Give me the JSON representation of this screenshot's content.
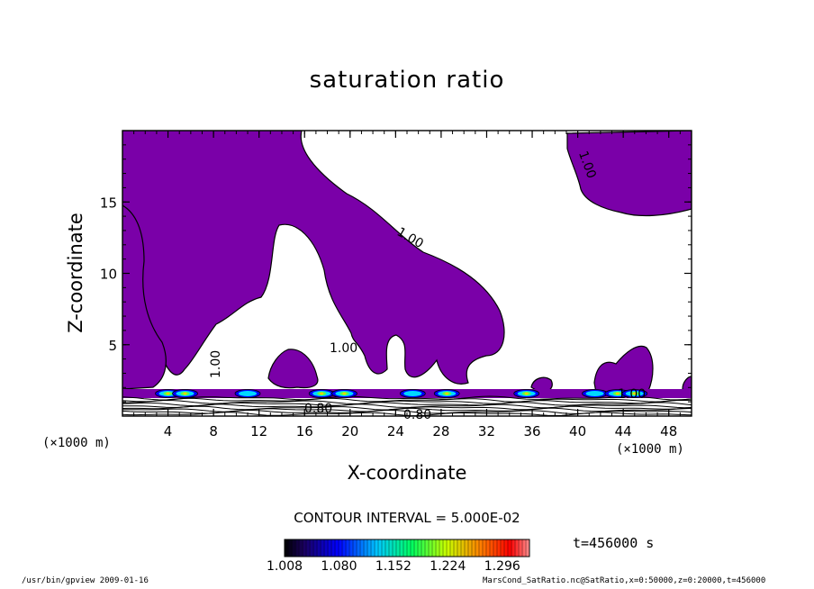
{
  "chart_data": {
    "type": "heatmap",
    "title": "saturation ratio",
    "xlabel": "X-coordinate",
    "ylabel": "Z-coordinate",
    "x_unit": "(×1000 m)",
    "z_unit": "(×1000 m)",
    "xlim": [
      0,
      50
    ],
    "ylim": [
      0,
      20
    ],
    "x_ticks": [
      4,
      8,
      12,
      16,
      20,
      24,
      28,
      32,
      36,
      40,
      44,
      48
    ],
    "y_ticks": [
      5,
      10,
      15
    ],
    "contour_interval_text": "CONTOUR INTERVAL = 5.000E-02",
    "contour_labels": [
      "1.00",
      "1.00",
      "1.00",
      "1.00",
      "1.00",
      "0.80",
      "0.80"
    ],
    "colorbar": {
      "colormap": "rainbow",
      "range": [
        1.008,
        1.332
      ],
      "tick_labels": [
        "1.008",
        "1.080",
        "1.152",
        "1.224",
        "1.296"
      ],
      "tick_values": [
        1.008,
        1.08,
        1.152,
        1.224,
        1.296
      ]
    },
    "time_label": "t=456000 s",
    "fill_color": "#7a00a8",
    "hotspot_x": [
      4,
      5.5,
      11,
      17.5,
      19.5,
      25.5,
      28.5,
      35.5,
      41.5,
      43.5,
      45
    ]
  },
  "footer": {
    "left": "/usr/bin/gpview  2009-01-16",
    "right": "MarsCond_SatRatio.nc@SatRatio,x=0:50000,z=0:20000,t=456000"
  }
}
